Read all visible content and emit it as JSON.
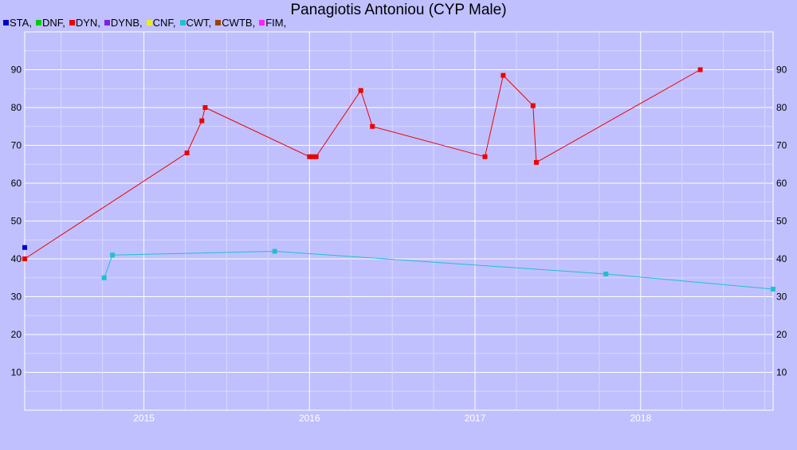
{
  "chart_data": {
    "type": "line",
    "title": "Panagiotis Antoniou (CYP Male)",
    "xlabel": "",
    "ylabel": "",
    "xlim": [
      2014.28,
      2018.8
    ],
    "ylim": [
      0,
      100
    ],
    "x_ticks": [
      "2015",
      "2016",
      "2017",
      "2018"
    ],
    "y_ticks": [
      "10",
      "20",
      "30",
      "40",
      "50",
      "60",
      "70",
      "80",
      "90"
    ],
    "grid": true,
    "legend_position": "top-left",
    "legend": [
      {
        "label": "STA,",
        "color": "#0000cc"
      },
      {
        "label": "DNF,",
        "color": "#00cc00"
      },
      {
        "label": "DYN,",
        "color": "#ee0000"
      },
      {
        "label": "DYNB,",
        "color": "#7f1fe0"
      },
      {
        "label": "CNF,",
        "color": "#eeee00"
      },
      {
        "label": "CWT,",
        "color": "#20c0d0"
      },
      {
        "label": "CWTB,",
        "color": "#a04000"
      },
      {
        "label": "FIM,",
        "color": "#ff20ff"
      }
    ],
    "series": [
      {
        "name": "STA",
        "color": "#0000cc",
        "points": [
          [
            2014.28,
            43
          ]
        ]
      },
      {
        "name": "DYN",
        "color": "#ee0000",
        "points": [
          [
            2014.28,
            40
          ],
          [
            2015.26,
            68
          ],
          [
            2015.35,
            76.5
          ],
          [
            2015.37,
            80
          ],
          [
            2016.0,
            67
          ],
          [
            2016.02,
            67
          ],
          [
            2016.04,
            67
          ],
          [
            2016.31,
            84.5
          ],
          [
            2016.38,
            75
          ],
          [
            2017.06,
            67
          ],
          [
            2017.17,
            88.5
          ],
          [
            2017.35,
            80.5
          ],
          [
            2017.37,
            65.5
          ],
          [
            2018.36,
            90
          ]
        ]
      },
      {
        "name": "CWT",
        "color": "#20c0d0",
        "points": [
          [
            2014.76,
            35
          ],
          [
            2014.81,
            41
          ],
          [
            2015.79,
            42
          ],
          [
            2017.79,
            36
          ],
          [
            2018.8,
            32
          ]
        ]
      }
    ]
  }
}
